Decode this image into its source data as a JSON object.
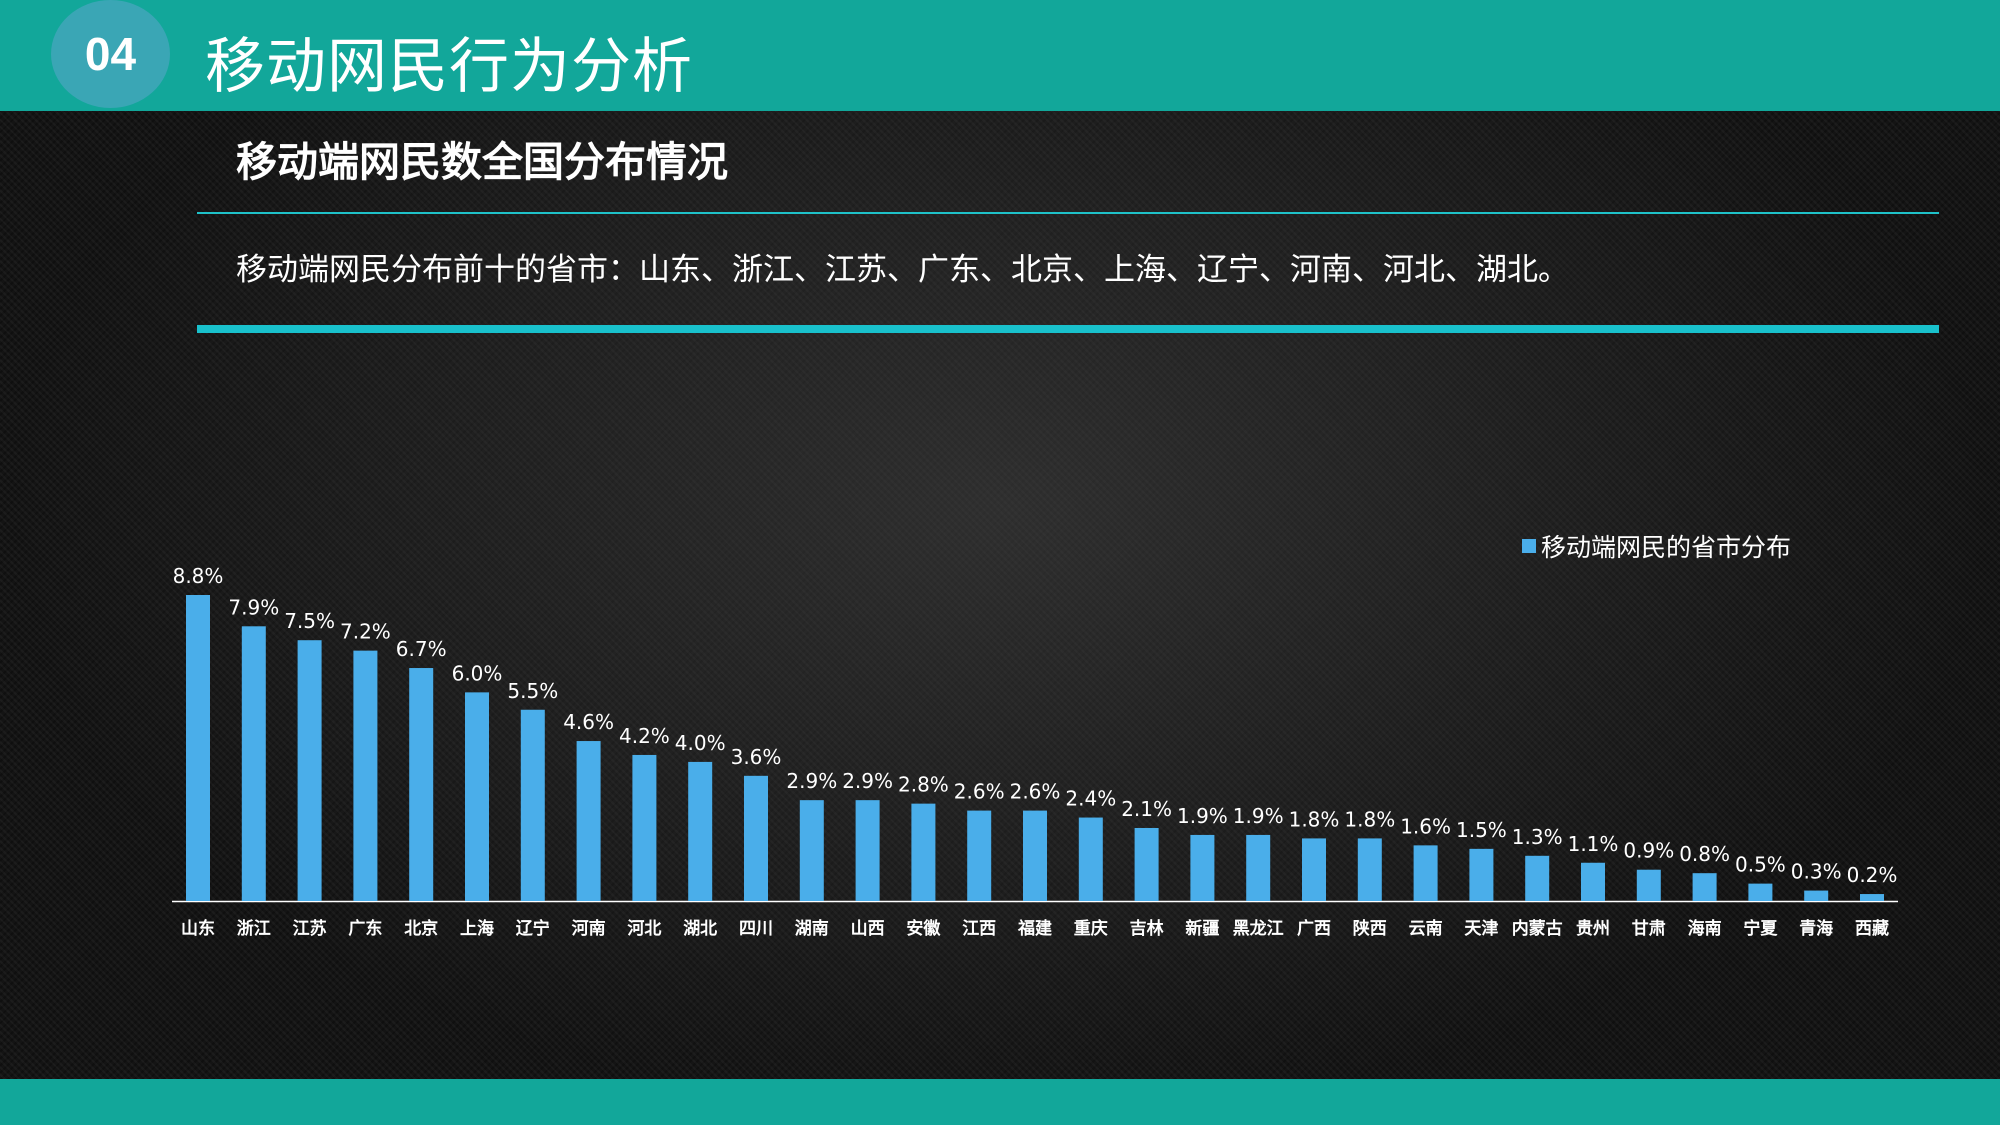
{
  "header": {
    "badge": "04",
    "title": "移动网民行为分析"
  },
  "section": {
    "heading": "移动端网民数全国分布情况",
    "summary": "移动端网民分布前十的省市：山东、浙江、江苏、广东、北京、上海、辽宁、河南、河北、湖北。"
  },
  "colors": {
    "bar": "#4aaeea",
    "accent": "#12a79a",
    "rule": "#1fc2c9"
  },
  "chart_data": {
    "type": "bar",
    "legend": {
      "label": "移动端网民的省市分布",
      "position": "top-right"
    },
    "categories": [
      "山东",
      "浙江",
      "江苏",
      "广东",
      "北京",
      "上海",
      "辽宁",
      "河南",
      "河北",
      "湖北",
      "四川",
      "湖南",
      "山西",
      "安徽",
      "江西",
      "福建",
      "重庆",
      "吉林",
      "新疆",
      "黑龙江",
      "广西",
      "陕西",
      "云南",
      "天津",
      "内蒙古",
      "贵州",
      "甘肃",
      "海南",
      "宁夏",
      "青海",
      "西藏"
    ],
    "values": [
      8.8,
      7.9,
      7.5,
      7.2,
      6.7,
      6.0,
      5.5,
      4.6,
      4.2,
      4.0,
      3.6,
      2.9,
      2.9,
      2.8,
      2.6,
      2.6,
      2.4,
      2.1,
      1.9,
      1.9,
      1.8,
      1.8,
      1.6,
      1.5,
      1.3,
      1.1,
      0.9,
      0.8,
      0.5,
      0.3,
      0.2
    ],
    "value_labels": [
      "8.8%",
      "7.9%",
      "7.5%",
      "7.2%",
      "6.7%",
      "6.0%",
      "5.5%",
      "4.6%",
      "4.2%",
      "4.0%",
      "3.6%",
      "2.9%",
      "2.9%",
      "2.8%",
      "2.6%",
      "2.6%",
      "2.4%",
      "2.1%",
      "1.9%",
      "1.9%",
      "1.8%",
      "1.8%",
      "1.6%",
      "1.5%",
      "1.3%",
      "1.1%",
      "0.9%",
      "0.8%",
      "0.5%",
      "0.3%",
      "0.2%"
    ],
    "unit": "%",
    "ylim": [
      0,
      8.8
    ],
    "grid": false
  }
}
